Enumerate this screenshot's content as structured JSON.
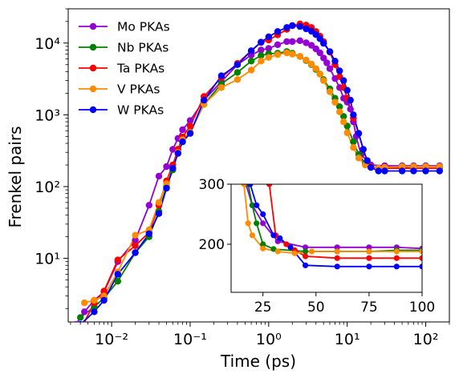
{
  "chart_data": [
    {
      "type": "line",
      "xlabel": "Time (ps)",
      "ylabel": "Frenkel pairs",
      "x_scale": "log",
      "y_scale": "log",
      "xlim": [
        0.0028,
        200
      ],
      "ylim": [
        1.3,
        30000
      ],
      "x_tick_labels": [
        "10⁻²",
        "10⁻¹",
        "10⁰",
        "10¹",
        "10²"
      ],
      "y_tick_labels": [
        "10¹",
        "10²",
        "10³",
        "10⁴"
      ],
      "legend_position": "top-left",
      "series": [
        {
          "name": "Mo PKAs",
          "color": "#9400D3",
          "x": [
            0.0035,
            0.0045,
            0.006,
            0.008,
            0.012,
            0.02,
            0.03,
            0.04,
            0.05,
            0.06,
            0.07,
            0.08,
            0.1,
            0.15,
            0.25,
            0.4,
            0.6,
            0.8,
            1.0,
            1.3,
            1.7,
            2.0,
            2.5,
            3.0,
            3.5,
            4.0,
            4.5,
            5.0,
            5.5,
            6.0,
            7.0,
            8.0,
            9.0,
            10.0,
            11.0,
            12.0,
            13.0,
            15.0,
            20.0,
            30.0,
            50.0,
            70.0,
            100.0,
            150.0
          ],
          "y": [
            1.2,
            1.8,
            2.6,
            3.4,
            9.0,
            18,
            55,
            140,
            190,
            330,
            470,
            620,
            830,
            1600,
            2900,
            5000,
            6800,
            8000,
            8400,
            9500,
            10500,
            10500,
            10800,
            10100,
            9300,
            8300,
            7300,
            6200,
            5300,
            4400,
            3200,
            2400,
            1700,
            1500,
            1200,
            800,
            500,
            280,
            200,
            195,
            195,
            195,
            195,
            195
          ]
        },
        {
          "name": "Nb PKAs",
          "color": "#008000",
          "x": [
            0.004,
            0.006,
            0.008,
            0.012,
            0.02,
            0.03,
            0.04,
            0.05,
            0.06,
            0.07,
            0.08,
            0.1,
            0.15,
            0.25,
            0.4,
            0.6,
            0.8,
            1.0,
            1.3,
            1.7,
            2.0,
            2.5,
            3.0,
            3.5,
            4.0,
            4.5,
            5.0,
            6.0,
            7.0,
            8.0,
            9.0,
            10.0,
            12.0,
            14.0,
            17.0,
            20.0,
            25.0,
            30.0,
            50.0,
            70.0,
            100.0,
            150.0
          ],
          "y": [
            1.5,
            2.1,
            2.8,
            4.8,
            12,
            20,
            45,
            100,
            170,
            300,
            450,
            570,
            1400,
            2700,
            3900,
            5600,
            6700,
            7100,
            7200,
            7600,
            7200,
            6500,
            5700,
            5000,
            4300,
            3700,
            3100,
            2300,
            1700,
            1300,
            950,
            700,
            420,
            280,
            210,
            185,
            180,
            180,
            185,
            190,
            190,
            190
          ]
        },
        {
          "name": "Ta PKAs",
          "color": "#FF0000",
          "x": [
            0.004,
            0.006,
            0.008,
            0.012,
            0.02,
            0.03,
            0.04,
            0.05,
            0.06,
            0.07,
            0.08,
            0.1,
            0.15,
            0.25,
            0.4,
            0.6,
            0.8,
            1.0,
            1.3,
            1.7,
            2.0,
            2.5,
            3.0,
            3.5,
            4.0,
            4.5,
            5.0,
            6.0,
            7.0,
            8.0,
            9.0,
            10.0,
            12.0,
            14.0,
            16.0,
            18.0,
            20.0,
            25.0,
            30.0,
            50.0,
            70.0,
            100.0,
            150.0
          ],
          "y": [
            1.0,
            2.4,
            3.5,
            9.5,
            15,
            23,
            55,
            120,
            200,
            330,
            490,
            700,
            1800,
            3300,
            5200,
            7800,
            10200,
            11000,
            13000,
            15500,
            17500,
            18500,
            17800,
            16500,
            14500,
            12500,
            10500,
            7500,
            5000,
            3400,
            2400,
            1700,
            900,
            550,
            330,
            220,
            190,
            180,
            180,
            180,
            180,
            180,
            180
          ]
        },
        {
          "name": "V PKAs",
          "color": "#FF8C00",
          "x": [
            0.0045,
            0.006,
            0.008,
            0.012,
            0.02,
            0.03,
            0.04,
            0.05,
            0.06,
            0.07,
            0.08,
            0.1,
            0.15,
            0.25,
            0.4,
            0.6,
            0.8,
            1.0,
            1.3,
            1.7,
            2.0,
            2.5,
            3.0,
            3.5,
            4.0,
            4.5,
            5.0,
            6.0,
            7.0,
            8.0,
            9.0,
            10.0,
            12.0,
            14.0,
            17.0,
            20.0,
            25.0,
            30.0,
            50.0,
            70.0,
            100.0,
            150.0
          ],
          "y": [
            2.4,
            2.6,
            3.0,
            6.5,
            21,
            25,
            60,
            110,
            180,
            300,
            450,
            570,
            1400,
            2400,
            3100,
            4200,
            5600,
            6300,
            6900,
            7300,
            7000,
            6500,
            5800,
            5100,
            4400,
            3700,
            3000,
            2100,
            1500,
            1100,
            800,
            560,
            350,
            250,
            200,
            185,
            180,
            185,
            190,
            190,
            190,
            190
          ]
        },
        {
          "name": "W PKAs",
          "color": "#0000FF",
          "x": [
            0.004,
            0.006,
            0.008,
            0.012,
            0.02,
            0.03,
            0.04,
            0.05,
            0.06,
            0.07,
            0.08,
            0.1,
            0.15,
            0.25,
            0.4,
            0.6,
            0.8,
            1.0,
            1.3,
            1.7,
            2.0,
            2.5,
            3.0,
            3.5,
            4.0,
            4.5,
            5.0,
            6.0,
            7.0,
            8.0,
            9.0,
            10.0,
            11.0,
            12.0,
            14.0,
            16.0,
            18.0,
            20.0,
            25.0,
            30.0,
            50.0,
            70.0,
            100.0,
            150.0
          ],
          "y": [
            1.2,
            1.8,
            2.6,
            6.0,
            12,
            22,
            42,
            95,
            180,
            290,
            420,
            550,
            1600,
            3500,
            5000,
            7800,
            10300,
            12200,
            14500,
            16500,
            17500,
            17000,
            15800,
            14600,
            13100,
            11500,
            9900,
            7600,
            5600,
            4100,
            3000,
            2200,
            1600,
            1000,
            550,
            330,
            230,
            185,
            165,
            165,
            165,
            165,
            165,
            165
          ]
        }
      ]
    },
    {
      "type": "line",
      "role": "inset",
      "xlim": [
        10,
        100
      ],
      "ylim": [
        120,
        300
      ],
      "x_tick_labels": [
        "25",
        "50",
        "75",
        "100"
      ],
      "y_tick_labels": [
        "200",
        "300"
      ],
      "series": [
        {
          "name": "Mo PKAs",
          "color": "#9400D3",
          "x": [
            17,
            20,
            25,
            32,
            45,
            60,
            75,
            88,
            100
          ],
          "y": [
            300,
            265,
            235,
            205,
            195,
            195,
            195,
            195,
            193
          ]
        },
        {
          "name": "Nb PKAs",
          "color": "#008000",
          "x": [
            18,
            20,
            22,
            25,
            30,
            45,
            60,
            75,
            88,
            100
          ],
          "y": [
            300,
            265,
            235,
            200,
            192,
            188,
            188,
            188,
            190,
            190
          ]
        },
        {
          "name": "Ta PKAs",
          "color": "#FF0000",
          "x": [
            28,
            31,
            36,
            40,
            45,
            60,
            75,
            88,
            100
          ],
          "y": [
            300,
            215,
            200,
            190,
            180,
            177,
            177,
            177,
            177
          ]
        },
        {
          "name": "V PKAs",
          "color": "#FF8C00",
          "x": [
            16,
            18,
            20,
            25,
            32,
            40,
            48,
            60,
            75,
            88,
            100
          ],
          "y": [
            300,
            235,
            215,
            193,
            188,
            185,
            188,
            188,
            188,
            188,
            188
          ]
        },
        {
          "name": "W PKAs",
          "color": "#0000FF",
          "x": [
            19,
            22,
            25,
            30,
            33,
            38,
            45,
            60,
            75,
            88,
            100
          ],
          "y": [
            300,
            265,
            250,
            215,
            210,
            195,
            165,
            163,
            163,
            163,
            163
          ]
        }
      ]
    }
  ]
}
